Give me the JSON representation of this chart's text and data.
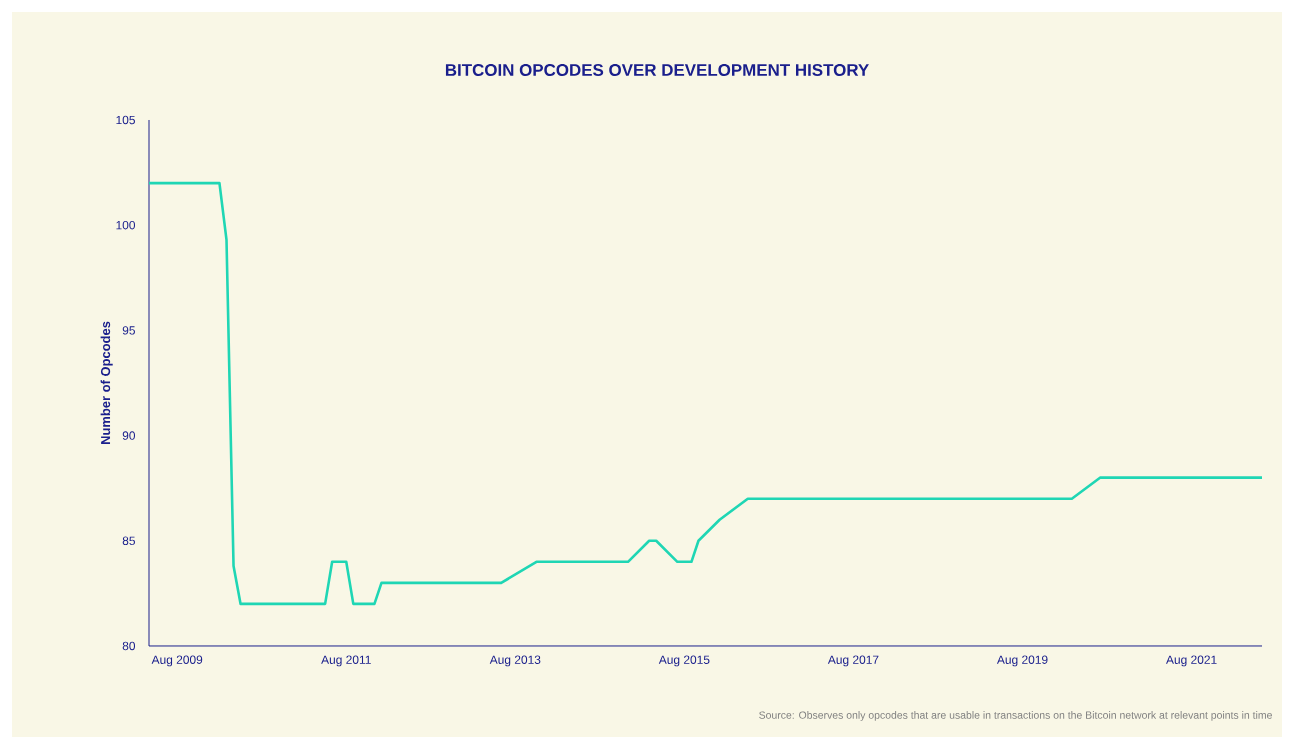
{
  "chart_data": {
    "type": "line",
    "title": "BITCOIN OPCODES OVER DEVELOPMENT HISTORY",
    "ylabel": "Number of Opcodes",
    "annotations": [
      "Source: Observes only opcodes that are usable in transactions on the Bitcoin network at relevant points in time"
    ],
    "x": [
      "2009-04",
      "2010-02",
      "2010-03",
      "2010-04",
      "2010-05",
      "2011-05",
      "2011-06",
      "2011-08",
      "2011-09",
      "2011-12",
      "2012-01",
      "2013-06",
      "2013-11",
      "2014-12",
      "2015-03",
      "2015-04",
      "2015-07",
      "2015-09",
      "2015-10",
      "2016-01",
      "2016-05",
      "2020-03",
      "2020-07",
      "2022-06"
    ],
    "series": [
      {
        "color": "#1fd6b4",
        "values": [
          102,
          102,
          99.3,
          83.8,
          82,
          82,
          84,
          84,
          82,
          82,
          83,
          83,
          84,
          84,
          85,
          85,
          84,
          84,
          85,
          86,
          87,
          87,
          88,
          88
        ]
      }
    ],
    "xlim": [
      "2009-04",
      "2022-06"
    ],
    "xticks": [
      {
        "value": "2009-08",
        "label": "Aug 2009"
      },
      {
        "value": "2011-08",
        "label": "Aug 2011"
      },
      {
        "value": "2013-08",
        "label": "Aug 2013"
      },
      {
        "value": "2015-08",
        "label": "Aug 2015"
      },
      {
        "value": "2017-08",
        "label": "Aug 2017"
      },
      {
        "value": "2019-08",
        "label": "Aug 2019"
      },
      {
        "value": "2021-08",
        "label": "Aug 2021"
      }
    ],
    "ylim": [
      80,
      105
    ],
    "yticks": [
      80,
      85,
      90,
      95,
      100,
      105
    ],
    "grid": false,
    "marker": "none",
    "line_style": "solid"
  }
}
